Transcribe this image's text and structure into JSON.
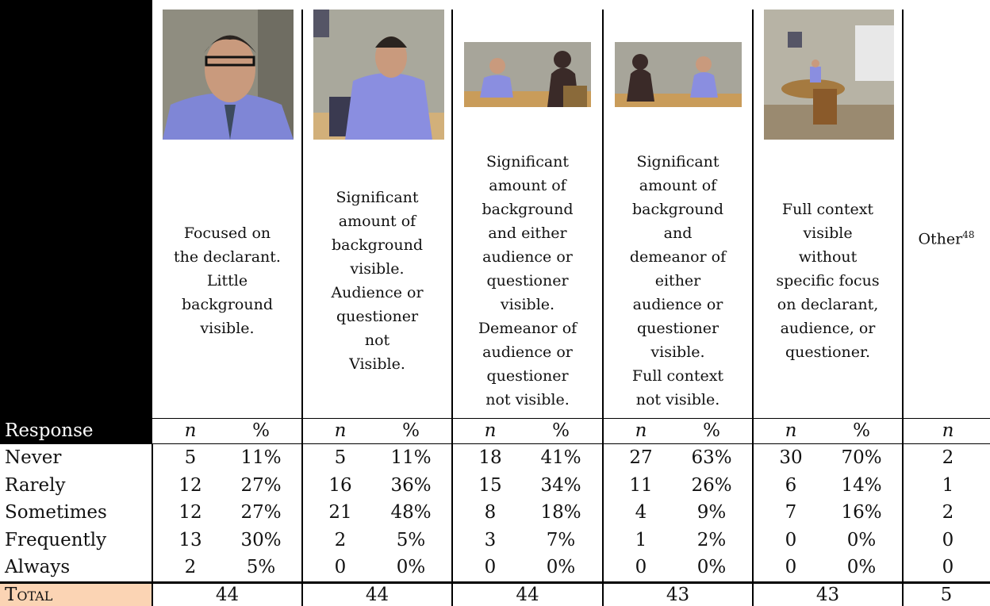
{
  "header": {
    "columns": [
      {
        "lines": [
          "Focused on",
          "the declarant.",
          "Little",
          "background",
          "visible."
        ]
      },
      {
        "lines": [
          "Significant",
          "amount of",
          "background",
          "visible.",
          "Audience or",
          "questioner",
          "not",
          "Visible."
        ]
      },
      {
        "lines": [
          "Significant",
          "amount of",
          "background",
          "and either",
          "audience or",
          "questioner",
          "visible.",
          "Demeanor of",
          "audience or",
          "questioner",
          "not visible."
        ]
      },
      {
        "lines": [
          "Significant",
          "amount of",
          "background",
          "and",
          "demeanor of",
          "either",
          "audience or",
          "questioner",
          "visible.",
          "Full context",
          "not visible."
        ]
      },
      {
        "lines": [
          "Full context",
          "visible",
          "without",
          "specific focus",
          "on declarant,",
          "audience, or",
          "questioner."
        ]
      }
    ],
    "other": {
      "label": "Other",
      "footnote": "48"
    }
  },
  "subheader": [
    "Response",
    "n",
    "%",
    "n",
    "%",
    "n",
    "%",
    "n",
    "%",
    "n",
    "%",
    "n"
  ],
  "rows": [
    {
      "label": "Never",
      "cells": [
        "5",
        "11%",
        "5",
        "11%",
        "18",
        "41%",
        "27",
        "63%",
        "30",
        "70%",
        "2"
      ]
    },
    {
      "label": "Rarely",
      "cells": [
        "12",
        "27%",
        "16",
        "36%",
        "15",
        "34%",
        "11",
        "26%",
        "6",
        "14%",
        "1"
      ]
    },
    {
      "label": "Sometimes",
      "cells": [
        "12",
        "27%",
        "21",
        "48%",
        "8",
        "18%",
        "4",
        "9%",
        "7",
        "16%",
        "2"
      ]
    },
    {
      "label": "Frequently",
      "cells": [
        "13",
        "30%",
        "2",
        "5%",
        "3",
        "7%",
        "1",
        "2%",
        "0",
        "0%",
        "0"
      ]
    },
    {
      "label": "Always",
      "cells": [
        "2",
        "5%",
        "0",
        "0%",
        "0",
        "0%",
        "0",
        "0%",
        "0",
        "0%",
        "0"
      ]
    }
  ],
  "total": {
    "label": "Total",
    "values": [
      "44",
      "44",
      "44",
      "43",
      "43",
      "5"
    ]
  }
}
